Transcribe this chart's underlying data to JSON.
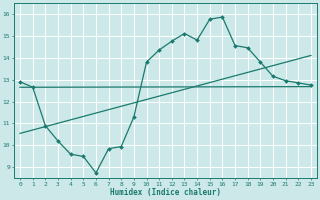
{
  "xlabel": "Humidex (Indice chaleur)",
  "bg_color": "#cce8e8",
  "grid_color": "#ffffff",
  "line_color": "#1a7a6e",
  "xlim": [
    -0.5,
    23.5
  ],
  "ylim": [
    8.5,
    16.5
  ],
  "xticks": [
    0,
    1,
    2,
    3,
    4,
    5,
    6,
    7,
    8,
    9,
    10,
    11,
    12,
    13,
    14,
    15,
    16,
    17,
    18,
    19,
    20,
    21,
    22,
    23
  ],
  "yticks": [
    9,
    10,
    11,
    12,
    13,
    14,
    15,
    16
  ],
  "curve_x": [
    0,
    1,
    2,
    3,
    4,
    5,
    6,
    7,
    8,
    9,
    10,
    11,
    12,
    13,
    14,
    15,
    16,
    17,
    18,
    19,
    20,
    21,
    22,
    23
  ],
  "curve_y": [
    12.9,
    12.65,
    10.9,
    10.2,
    9.6,
    9.5,
    8.75,
    9.85,
    9.95,
    11.3,
    13.8,
    14.35,
    14.75,
    15.1,
    14.8,
    15.75,
    15.85,
    14.55,
    14.45,
    13.8,
    13.15,
    12.95,
    12.85,
    12.75
  ],
  "line1_x": [
    0,
    23
  ],
  "line1_y": [
    12.65,
    12.68
  ],
  "line2_x": [
    0,
    23
  ],
  "line2_y": [
    10.55,
    14.1
  ]
}
